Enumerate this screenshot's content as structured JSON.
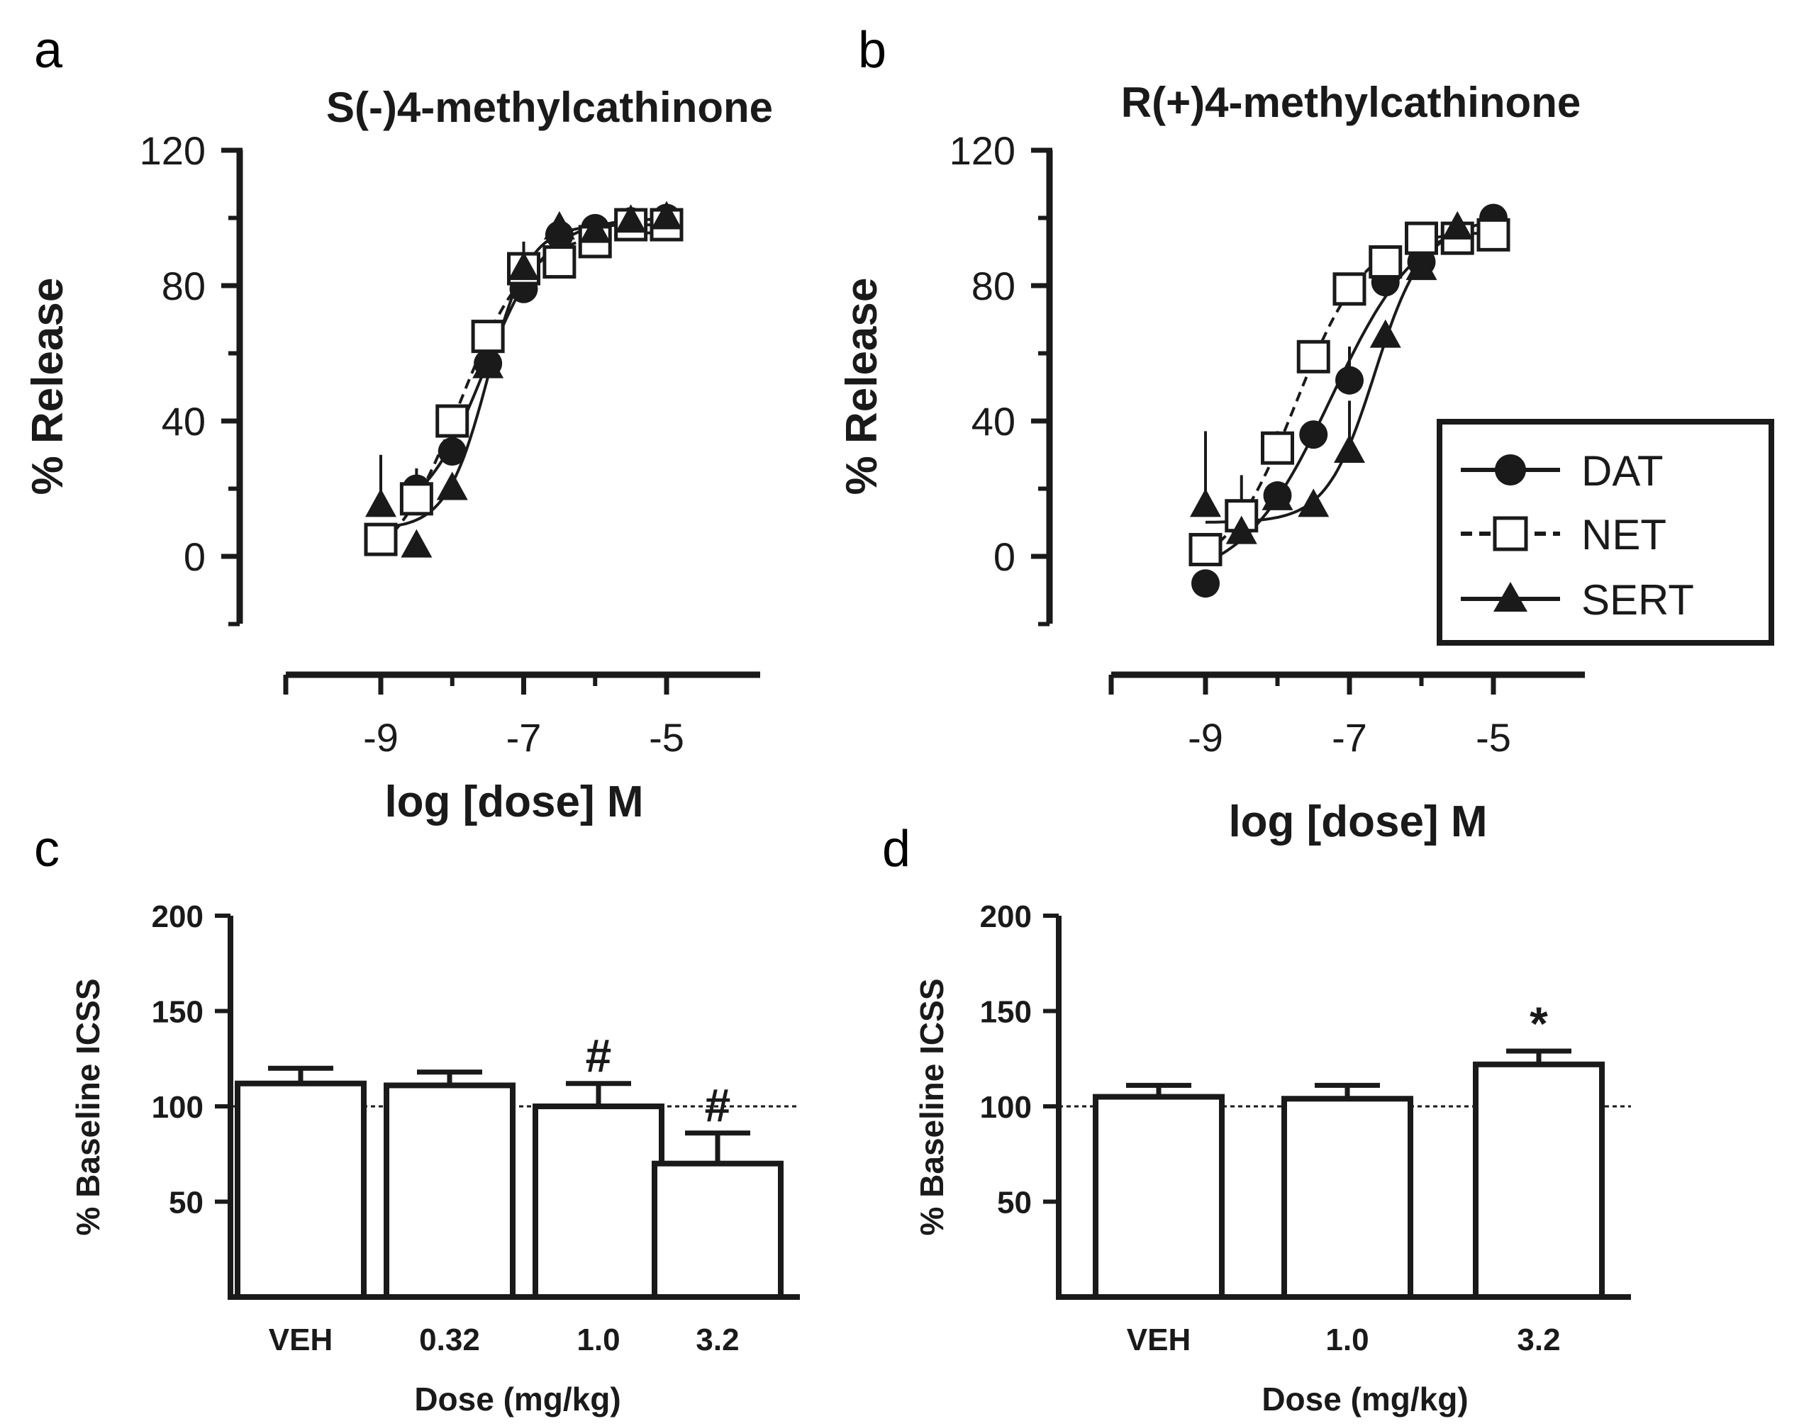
{
  "chart_data": [
    {
      "panel": "a",
      "type": "scatter",
      "title": "S(-)4-methylcathinone",
      "xlabel": "log [dose] M",
      "ylabel": "% Release",
      "xticks": [
        -9,
        -7,
        -5
      ],
      "yticks": [
        0,
        40,
        80,
        120
      ],
      "xlim": [
        -10.35,
        -3.7
      ],
      "ylim": [
        -20,
        120
      ],
      "series": [
        {
          "name": "DAT",
          "marker": "circle",
          "line": "solid",
          "x": [
            -8.5,
            -8.0,
            -7.5,
            -7.0,
            -6.5,
            -6.0,
            -5.5,
            -5.0
          ],
          "y": [
            20,
            31,
            57,
            79,
            95,
            97,
            99,
            100
          ],
          "err": [
            6,
            5,
            4,
            4,
            2,
            2,
            2,
            2
          ]
        },
        {
          "name": "NET",
          "marker": "square",
          "line": "dashed",
          "x": [
            -9.0,
            -8.5,
            -8.0,
            -7.5,
            -7.0,
            -6.5,
            -6.0,
            -5.5,
            -5.0
          ],
          "y": [
            5,
            17,
            40,
            65,
            85,
            87,
            93,
            98,
            98
          ],
          "err": [
            0,
            5,
            0,
            0,
            0,
            0,
            0,
            0,
            0
          ]
        },
        {
          "name": "SERT",
          "marker": "triangle",
          "line": "solid",
          "x": [
            -9.0,
            -8.5,
            -8.0,
            -7.5,
            -7.0,
            -6.5,
            -6.0,
            -5.5,
            -5.0
          ],
          "y": [
            15,
            3,
            20,
            56,
            85,
            97,
            96,
            99,
            100
          ],
          "err": [
            15,
            0,
            0,
            0,
            8,
            0,
            0,
            0,
            0
          ]
        }
      ]
    },
    {
      "panel": "b",
      "type": "scatter",
      "title": "R(+)4-methylcathinone",
      "xlabel": "log [dose] M",
      "ylabel": "% Release",
      "xticks": [
        -9,
        -7,
        -5
      ],
      "yticks": [
        0,
        40,
        80,
        120
      ],
      "xlim": [
        -10.35,
        -3.7
      ],
      "ylim": [
        -20,
        120
      ],
      "legend": {
        "position": "right",
        "entries": [
          "DAT",
          "NET",
          "SERT"
        ]
      },
      "series": [
        {
          "name": "DAT",
          "marker": "circle",
          "line": "solid",
          "x": [
            -9.0,
            -8.5,
            -8.0,
            -7.5,
            -7.0,
            -6.5,
            -6.0,
            -5.5,
            -5.0
          ],
          "y": [
            -8,
            10,
            18,
            36,
            52,
            81,
            87,
            94,
            100
          ],
          "err": [
            0,
            0,
            0,
            0,
            10,
            5,
            0,
            0,
            0
          ]
        },
        {
          "name": "NET",
          "marker": "square",
          "line": "dashed",
          "x": [
            -9.0,
            -8.5,
            -8.0,
            -7.5,
            -7.0,
            -6.5,
            -6.0,
            -5.5,
            -5.0
          ],
          "y": [
            2,
            12,
            32,
            59,
            79,
            87,
            94,
            94,
            95
          ],
          "err": [
            0,
            12,
            5,
            0,
            0,
            0,
            0,
            0,
            0
          ]
        },
        {
          "name": "SERT",
          "marker": "triangle",
          "line": "solid",
          "x": [
            -9.0,
            -8.5,
            -8.0,
            -7.5,
            -7.0,
            -6.5,
            -6.0,
            -5.5
          ],
          "y": [
            15,
            7,
            17,
            15,
            31,
            65,
            85,
            97
          ],
          "err": [
            22,
            0,
            0,
            0,
            15,
            0,
            0,
            0
          ]
        }
      ]
    },
    {
      "panel": "c",
      "type": "bar",
      "xlabel": "Dose (mg/kg)",
      "ylabel": "% Baseline ICSS",
      "yticks": [
        50,
        100,
        150,
        200
      ],
      "ylim": [
        0,
        200
      ],
      "reference_line": 100,
      "categories": [
        "VEH",
        "0.32",
        "1.0",
        "3.2"
      ],
      "values": [
        112,
        111,
        100,
        70
      ],
      "err": [
        8,
        7,
        12,
        16
      ],
      "annotations": [
        "",
        "",
        "#",
        "#"
      ]
    },
    {
      "panel": "d",
      "type": "bar",
      "xlabel": "Dose (mg/kg)",
      "ylabel": "% Baseline ICSS",
      "yticks": [
        50,
        100,
        150,
        200
      ],
      "ylim": [
        0,
        200
      ],
      "reference_line": 100,
      "categories": [
        "VEH",
        "1.0",
        "3.2"
      ],
      "values": [
        105,
        104,
        122
      ],
      "err": [
        6,
        7,
        7
      ],
      "annotations": [
        "",
        "",
        "*"
      ]
    }
  ]
}
